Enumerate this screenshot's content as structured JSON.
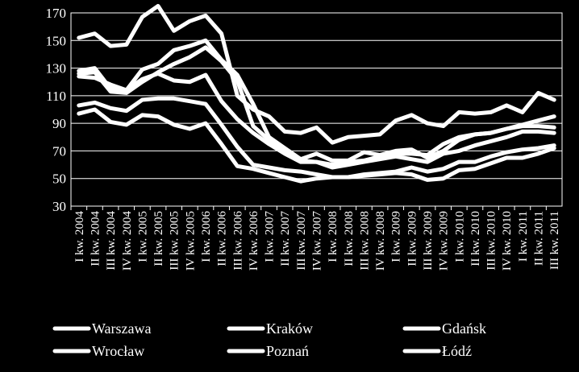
{
  "chart_data": {
    "type": "line",
    "title": "",
    "xlabel": "",
    "ylabel": "",
    "ylim": [
      30,
      170
    ],
    "yticks": [
      30,
      50,
      70,
      90,
      110,
      130,
      150,
      170
    ],
    "grid": true,
    "legend_position": "bottom",
    "categories": [
      "I kw. 2004",
      "II kw. 2004",
      "III kw. 2004",
      "IV kw. 2004",
      "I kw. 2005",
      "II kw. 2005",
      "III kw. 2005",
      "IV kw. 2005",
      "I kw. 2006",
      "II kw. 2006",
      "III kw. 2006",
      "IV kw. 2006",
      "I kw. 2007",
      "II kw. 2007",
      "III kw. 2007",
      "IV kw. 2007",
      "I kw. 2008",
      "II kw. 2008",
      "III kw. 2008",
      "IV kw. 2008",
      "I kw. 2009",
      "II kw. 2009",
      "III kw. 2009",
      "IV kw. 2009",
      "I kw. 2010",
      "II kw. 2010",
      "III kw. 2010",
      "IV kw. 2010",
      "I kw. 2011",
      "II kw. 2011",
      "III kw. 2011"
    ],
    "series": [
      {
        "name": "Warszawa",
        "color": "#ffffff",
        "values": [
          152,
          155,
          146,
          147,
          167,
          175,
          157,
          164,
          168,
          155,
          110,
          100,
          95,
          84,
          83,
          87,
          76,
          80,
          81,
          82,
          92,
          96,
          90,
          88,
          98,
          97,
          98,
          103,
          98,
          112,
          107
        ]
      },
      {
        "name": "Kraków",
        "color": "#ffffff",
        "values": [
          128,
          130,
          115,
          114,
          129,
          133,
          143,
          146,
          150,
          136,
          125,
          104,
          80,
          72,
          64,
          68,
          63,
          63,
          69,
          67,
          70,
          71,
          65,
          70,
          78,
          82,
          83,
          86,
          88,
          88,
          87
        ]
      },
      {
        "name": "Gdańsk",
        "color": "#ffffff",
        "values": [
          126,
          127,
          113,
          112,
          120,
          127,
          133,
          138,
          145,
          135,
          121,
          88,
          78,
          70,
          63,
          62,
          60,
          62,
          63,
          66,
          68,
          68,
          67,
          75,
          80,
          82,
          83,
          86,
          89,
          92,
          95
        ]
      },
      {
        "name": "Wrocław",
        "color": "#ffffff",
        "values": [
          124,
          123,
          118,
          114,
          122,
          126,
          121,
          120,
          125,
          106,
          93,
          83,
          75,
          68,
          62,
          62,
          58,
          60,
          62,
          64,
          66,
          64,
          62,
          68,
          70,
          74,
          77,
          80,
          84,
          84,
          83
        ]
      },
      {
        "name": "Poznań",
        "color": "#ffffff",
        "values": [
          103,
          105,
          101,
          99,
          107,
          108,
          108,
          106,
          104,
          89,
          73,
          60,
          58,
          56,
          55,
          53,
          51,
          51,
          53,
          54,
          55,
          58,
          55,
          57,
          62,
          62,
          66,
          69,
          71,
          72,
          74
        ]
      },
      {
        "name": "Łódź",
        "color": "#ffffff",
        "values": [
          97,
          100,
          91,
          89,
          96,
          95,
          89,
          86,
          90,
          75,
          59,
          57,
          54,
          51,
          48,
          50,
          51,
          51,
          52,
          53,
          54,
          53,
          49,
          50,
          56,
          57,
          61,
          65,
          65,
          68,
          72
        ]
      }
    ]
  }
}
